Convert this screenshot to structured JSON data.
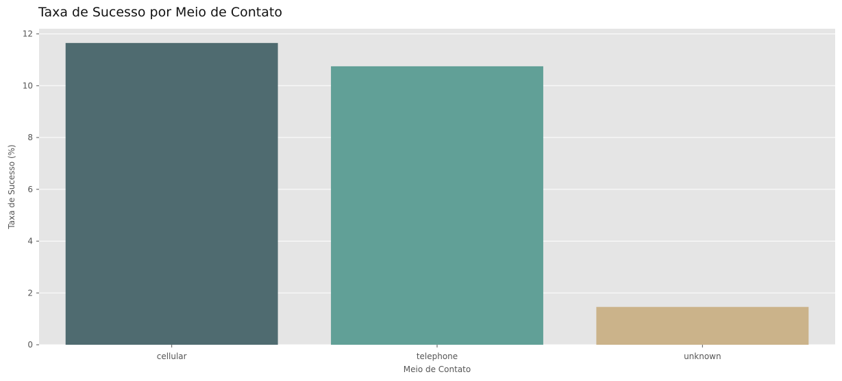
{
  "chart_data": {
    "type": "bar",
    "title": "Taxa de Sucesso por Meio de Contato",
    "xlabel": "Meio de Contato",
    "ylabel": "Taxa de Sucesso (%)",
    "categories": [
      "cellular",
      "telephone",
      "unknown"
    ],
    "values": [
      11.65,
      10.75,
      1.46
    ],
    "colors": [
      "#4f6b70",
      "#61a097",
      "#cbb38a"
    ],
    "ylim": [
      0,
      12.2
    ],
    "yticks": [
      0,
      2,
      4,
      6,
      8,
      10,
      12
    ],
    "grid": true,
    "plot_background": "#e5e5e5",
    "grid_color": "#ffffff"
  }
}
